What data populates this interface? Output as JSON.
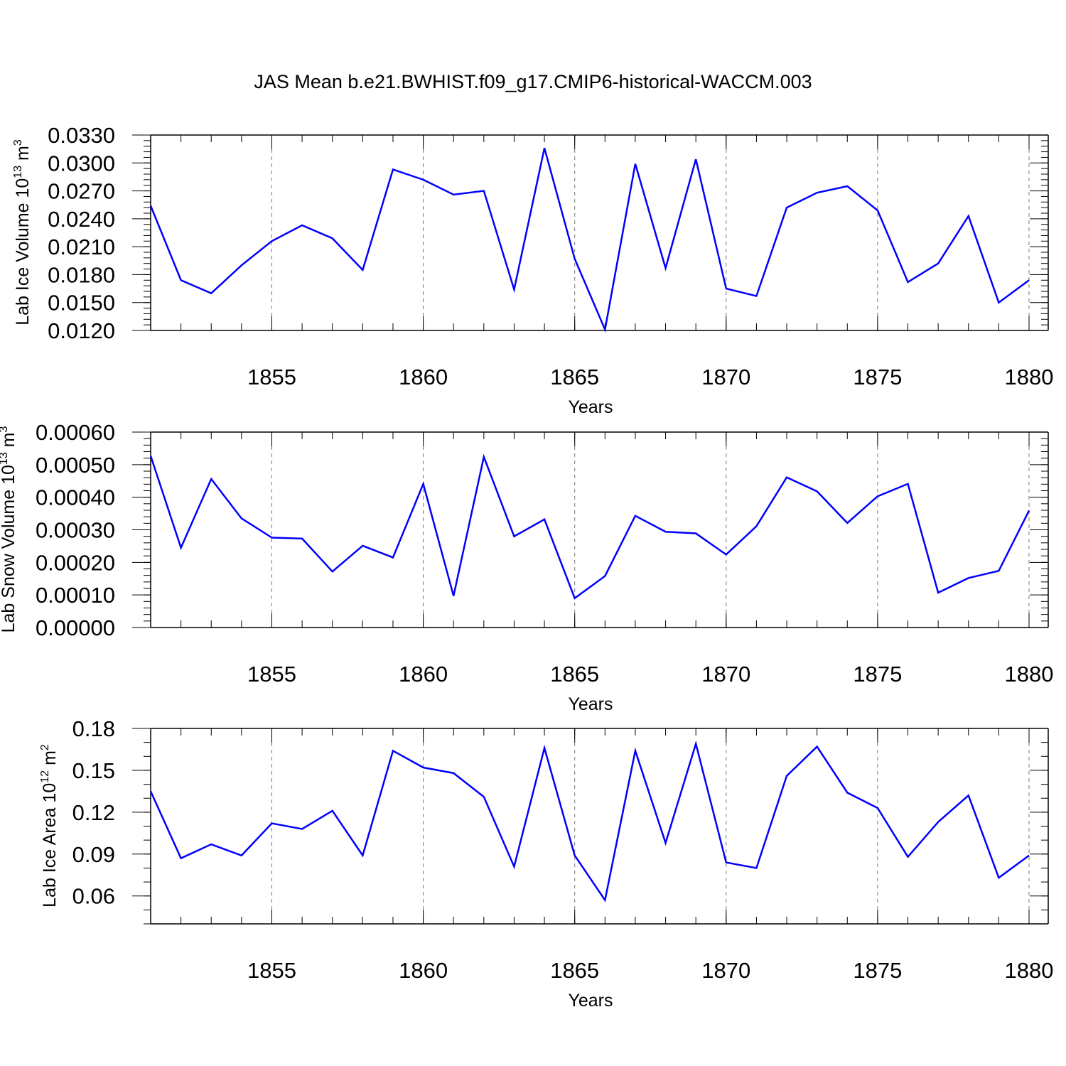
{
  "title": "JAS Mean b.e21.BWHIST.f09_g17.CMIP6-historical-WACCM.003",
  "line_color": "#0000ff",
  "chart_data": [
    {
      "type": "line",
      "ylabel_main": "Lab Ice Volume 10",
      "ylabel_exp": "13",
      "ylabel_unit": " m",
      "ylabel_unit_exp": "3",
      "xlabel": "Years",
      "xlim": [
        1851,
        1880
      ],
      "ylim": [
        0.012,
        0.033
      ],
      "yticks": [
        0.012,
        0.015,
        0.018,
        0.021,
        0.024,
        0.027,
        0.03,
        0.033
      ],
      "ytick_labels": [
        "0.0120",
        "0.0150",
        "0.0180",
        "0.0210",
        "0.0240",
        "0.0270",
        "0.0300",
        "0.0330"
      ],
      "yminor_step": 0.0006,
      "xticks": [
        1855,
        1860,
        1865,
        1870,
        1875,
        1880
      ],
      "xtick_labels": [
        "1855",
        "1860",
        "1865",
        "1870",
        "1875",
        "1880"
      ],
      "x": [
        1851,
        1852,
        1853,
        1854,
        1855,
        1856,
        1857,
        1858,
        1859,
        1860,
        1861,
        1862,
        1863,
        1864,
        1865,
        1866,
        1867,
        1868,
        1869,
        1870,
        1871,
        1872,
        1873,
        1874,
        1875,
        1876,
        1877,
        1878,
        1879,
        1880
      ],
      "values": [
        0.0254,
        0.0174,
        0.016,
        0.019,
        0.0216,
        0.0233,
        0.0219,
        0.0185,
        0.0293,
        0.0282,
        0.0266,
        0.027,
        0.0164,
        0.0316,
        0.0197,
        0.0121,
        0.0299,
        0.0187,
        0.0304,
        0.0165,
        0.0157,
        0.0252,
        0.0268,
        0.0275,
        0.0249,
        0.0172,
        0.0192,
        0.0243,
        0.015,
        0.0174
      ]
    },
    {
      "type": "line",
      "ylabel_main": "Lab Snow Volume 10",
      "ylabel_exp": "13",
      "ylabel_unit": " m",
      "ylabel_unit_exp": "3",
      "xlabel": "Years",
      "xlim": [
        1851,
        1880
      ],
      "ylim": [
        0.0,
        0.0006
      ],
      "yticks": [
        0.0,
        0.0001,
        0.0002,
        0.0003,
        0.0004,
        0.0005,
        0.0006
      ],
      "ytick_labels": [
        "0.00000",
        "0.00010",
        "0.00020",
        "0.00030",
        "0.00040",
        "0.00050",
        "0.00060"
      ],
      "yminor_step": 2e-05,
      "xticks": [
        1855,
        1860,
        1865,
        1870,
        1875,
        1880
      ],
      "xtick_labels": [
        "1855",
        "1860",
        "1865",
        "1870",
        "1875",
        "1880"
      ],
      "x": [
        1851,
        1852,
        1853,
        1854,
        1855,
        1856,
        1857,
        1858,
        1859,
        1860,
        1861,
        1862,
        1863,
        1864,
        1865,
        1866,
        1867,
        1868,
        1869,
        1870,
        1871,
        1872,
        1873,
        1874,
        1875,
        1876,
        1877,
        1878,
        1879,
        1880
      ],
      "values": [
        0.000527,
        0.000245,
        0.000456,
        0.000335,
        0.000276,
        0.000273,
        0.000172,
        0.000251,
        0.000215,
        0.000441,
        9.7e-05,
        0.000524,
        0.00028,
        0.000332,
        9e-05,
        0.000158,
        0.000343,
        0.000294,
        0.000289,
        0.000224,
        0.000311,
        0.000461,
        0.000418,
        0.000321,
        0.000403,
        0.000441,
        0.000107,
        0.000152,
        0.000174,
        0.000359
      ]
    },
    {
      "type": "line",
      "ylabel_main": "Lab Ice Area 10",
      "ylabel_exp": "12",
      "ylabel_unit": " m",
      "ylabel_unit_exp": "2",
      "xlabel": "Years",
      "xlim": [
        1851,
        1880
      ],
      "ylim": [
        0.04,
        0.18
      ],
      "yticks": [
        0.06,
        0.09,
        0.12,
        0.15,
        0.18
      ],
      "ytick_labels": [
        "0.06",
        "0.09",
        "0.12",
        "0.15",
        "0.18"
      ],
      "yminor_step": 0.01,
      "xticks": [
        1855,
        1860,
        1865,
        1870,
        1875,
        1880
      ],
      "xtick_labels": [
        "1855",
        "1860",
        "1865",
        "1870",
        "1875",
        "1880"
      ],
      "x": [
        1851,
        1852,
        1853,
        1854,
        1855,
        1856,
        1857,
        1858,
        1859,
        1860,
        1861,
        1862,
        1863,
        1864,
        1865,
        1866,
        1867,
        1868,
        1869,
        1870,
        1871,
        1872,
        1873,
        1874,
        1875,
        1876,
        1877,
        1878,
        1879,
        1880
      ],
      "values": [
        0.135,
        0.087,
        0.097,
        0.089,
        0.112,
        0.108,
        0.121,
        0.089,
        0.164,
        0.152,
        0.148,
        0.131,
        0.081,
        0.166,
        0.089,
        0.057,
        0.164,
        0.098,
        0.169,
        0.084,
        0.08,
        0.146,
        0.167,
        0.134,
        0.123,
        0.088,
        0.113,
        0.132,
        0.073,
        0.089
      ]
    }
  ]
}
